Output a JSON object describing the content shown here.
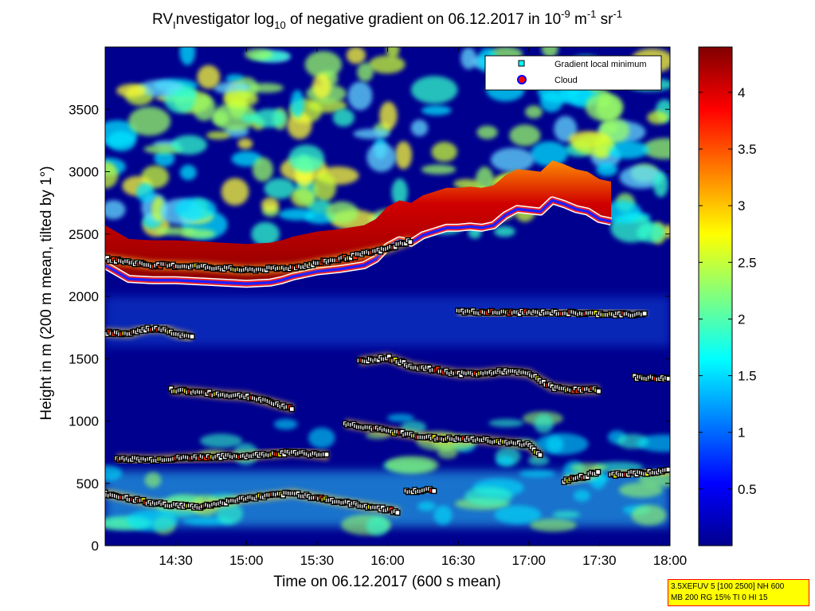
{
  "chart_data": {
    "type": "heatmap",
    "title": {
      "prefix": "RV",
      "prefix_sub": "I",
      "part1": "nvestigator log",
      "sub1": "10",
      "part2": " of negative gradient on 06.12.2017 in 10",
      "sup1": "-9",
      "part3": " m",
      "sup2": "-1",
      "part4": " sr",
      "sup3": "-1"
    },
    "xlabel": "Time on 06.12.2017 (600 s mean)",
    "ylabel": "Height in m (200 m mean, tilted by 1°)",
    "x_range": [
      "14:00",
      "18:00"
    ],
    "x_tick_labels": [
      "14:30",
      "15:00",
      "15:30",
      "16:00",
      "16:30",
      "17:00",
      "17:30",
      "18:00"
    ],
    "x_tick_minutes": [
      30,
      60,
      90,
      120,
      150,
      180,
      210,
      240
    ],
    "ylim": [
      0,
      4000
    ],
    "y_ticks": [
      0,
      500,
      1000,
      1500,
      2000,
      2500,
      3000,
      3500
    ],
    "colorbar": {
      "range": [
        0,
        4.4
      ],
      "ticks": [
        0.5,
        1,
        1.5,
        2,
        2.5,
        3,
        3.5,
        4
      ],
      "colormap": "jet"
    },
    "legend": {
      "position": "top-right",
      "entries": [
        {
          "label": "Gradient local minimum",
          "marker": "square",
          "color": "#00ffff"
        },
        {
          "label": "Cloud",
          "marker": "circle",
          "color": "#ff0000",
          "edge": "#0000ff"
        }
      ]
    },
    "layers": [
      {
        "name": "cloud",
        "color": "#3030ff",
        "points": [
          [
            0,
            2250
          ],
          [
            10,
            2140
          ],
          [
            20,
            2130
          ],
          [
            30,
            2130
          ],
          [
            40,
            2120
          ],
          [
            50,
            2110
          ],
          [
            60,
            2100
          ],
          [
            70,
            2110
          ],
          [
            75,
            2130
          ],
          [
            80,
            2160
          ],
          [
            90,
            2200
          ],
          [
            100,
            2220
          ],
          [
            110,
            2250
          ],
          [
            115,
            2300
          ],
          [
            120,
            2400
          ],
          [
            125,
            2450
          ],
          [
            130,
            2430
          ],
          [
            135,
            2490
          ],
          [
            140,
            2520
          ],
          [
            145,
            2550
          ],
          [
            150,
            2550
          ],
          [
            155,
            2560
          ],
          [
            160,
            2550
          ],
          [
            165,
            2570
          ],
          [
            170,
            2650
          ],
          [
            175,
            2700
          ],
          [
            180,
            2690
          ],
          [
            185,
            2680
          ],
          [
            190,
            2770
          ],
          [
            195,
            2740
          ],
          [
            200,
            2700
          ],
          [
            205,
            2680
          ],
          [
            210,
            2620
          ],
          [
            215,
            2600
          ]
        ]
      },
      {
        "name": "layer-2200",
        "points": [
          [
            0,
            2300
          ],
          [
            20,
            2250
          ],
          [
            40,
            2240
          ],
          [
            60,
            2210
          ],
          [
            80,
            2230
          ],
          [
            100,
            2300
          ],
          [
            120,
            2380
          ],
          [
            130,
            2450
          ]
        ]
      },
      {
        "name": "layer-1850",
        "points": [
          [
            150,
            1880
          ],
          [
            170,
            1870
          ],
          [
            190,
            1870
          ],
          [
            210,
            1860
          ],
          [
            230,
            1850
          ]
        ]
      },
      {
        "name": "layer-1750",
        "points": [
          [
            0,
            1710
          ],
          [
            10,
            1700
          ],
          [
            18,
            1740
          ],
          [
            25,
            1740
          ],
          [
            30,
            1700
          ],
          [
            37,
            1670
          ]
        ]
      },
      {
        "name": "layer-1470",
        "points": [
          [
            108,
            1480
          ],
          [
            120,
            1510
          ],
          [
            130,
            1440
          ],
          [
            140,
            1410
          ],
          [
            150,
            1380
          ],
          [
            160,
            1380
          ],
          [
            170,
            1400
          ],
          [
            180,
            1380
          ],
          [
            190,
            1270
          ],
          [
            200,
            1250
          ],
          [
            210,
            1250
          ]
        ]
      },
      {
        "name": "layer-1250",
        "points": [
          [
            28,
            1250
          ],
          [
            40,
            1230
          ],
          [
            50,
            1210
          ],
          [
            60,
            1200
          ],
          [
            70,
            1150
          ],
          [
            80,
            1100
          ]
        ]
      },
      {
        "name": "layer-1340",
        "points": [
          [
            225,
            1350
          ],
          [
            240,
            1340
          ]
        ]
      },
      {
        "name": "layer-900",
        "points": [
          [
            102,
            980
          ],
          [
            120,
            920
          ],
          [
            140,
            860
          ],
          [
            160,
            850
          ],
          [
            180,
            810
          ],
          [
            185,
            720
          ]
        ]
      },
      {
        "name": "layer-700",
        "points": [
          [
            5,
            700
          ],
          [
            20,
            690
          ],
          [
            40,
            710
          ],
          [
            60,
            720
          ],
          [
            80,
            750
          ],
          [
            95,
            720
          ]
        ]
      },
      {
        "name": "layer-400",
        "points": [
          [
            0,
            420
          ],
          [
            20,
            340
          ],
          [
            40,
            310
          ],
          [
            60,
            380
          ],
          [
            80,
            420
          ],
          [
            100,
            350
          ],
          [
            120,
            290
          ],
          [
            125,
            270
          ]
        ]
      },
      {
        "name": "layer-450",
        "points": [
          [
            128,
            430
          ],
          [
            140,
            450
          ]
        ]
      },
      {
        "name": "layer-600",
        "points": [
          [
            215,
            570
          ],
          [
            240,
            600
          ]
        ]
      },
      {
        "name": "layer-500",
        "points": [
          [
            195,
            520
          ],
          [
            205,
            560
          ],
          [
            210,
            600
          ]
        ]
      }
    ]
  },
  "info_box": {
    "line1": "3.5XEFUV 5 [100 2500] NH 600",
    "line2": "MB 200 RG 15% TI 0 HI 15"
  }
}
